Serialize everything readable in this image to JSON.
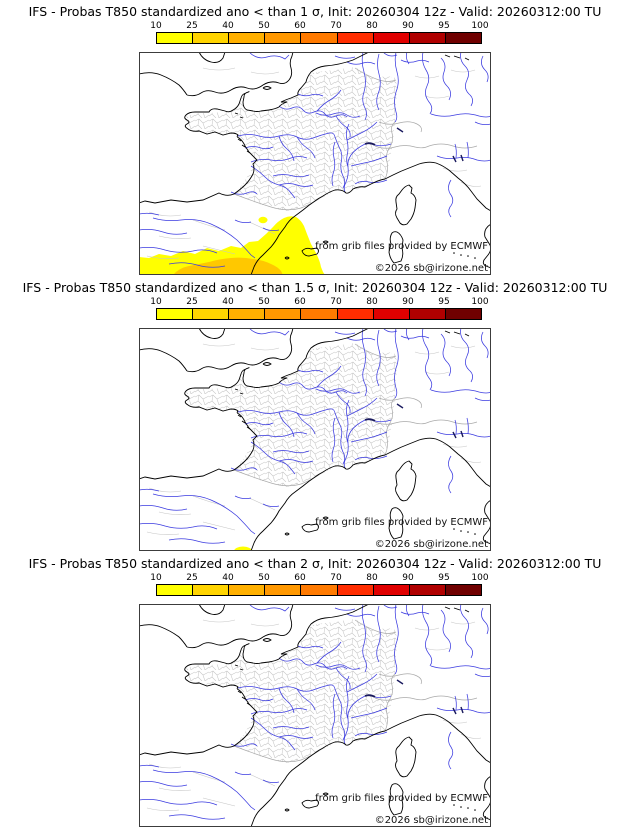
{
  "page": {
    "background": "#ffffff"
  },
  "colorbar": {
    "tick_labels": [
      "10",
      "25",
      "40",
      "50",
      "60",
      "70",
      "80",
      "90",
      "95",
      "100"
    ],
    "segment_colors": [
      "#ffff00",
      "#ffd400",
      "#ffb000",
      "#ff9800",
      "#ff7a00",
      "#ff2d00",
      "#e00000",
      "#b00000",
      "#700000"
    ],
    "outline_color": "#000000"
  },
  "panels": [
    {
      "title": "IFS - Probas T850  standardized ano < than 1 σ, Init: 20260304 12z - Valid: 20260312:00 TU",
      "threshold_sigma": "1",
      "overlay": "southwest-large"
    },
    {
      "title": "IFS - Probas T850  standardized ano < than 1.5 σ, Init: 20260304 12z - Valid: 20260312:00 TU",
      "threshold_sigma": "1.5",
      "overlay": "south-small"
    },
    {
      "title": "IFS - Probas T850  standardized ano < than 2 σ, Init: 20260304 12z - Valid: 20260312:00 TU",
      "threshold_sigma": "2",
      "overlay": "none"
    }
  ],
  "map": {
    "credit_line1": "from grib files provided by ECMWF",
    "credit_line2": "©2026 sb@irizone.net",
    "colors": {
      "coastline": "#000000",
      "rivers": "#3b3be0",
      "admin_boundaries": "#c6c6c6",
      "country_borders": "#a9a9a9",
      "lakes": "#1a1a5e",
      "prob_10_25": "#ffff00",
      "prob_25_40": "#ffc800"
    }
  }
}
